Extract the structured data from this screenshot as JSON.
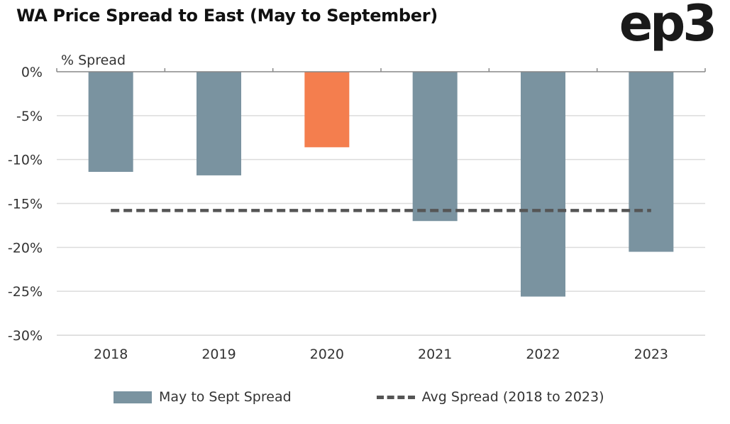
{
  "title": "WA Price Spread to East (May to September)",
  "logo_text": "ep3",
  "colors": {
    "bar": "#7a93a0",
    "highlight": "#f47e4e",
    "avg_line": "#555555",
    "grid": "#dcdcdc",
    "axis": "#888888"
  },
  "chart_data": {
    "type": "bar",
    "ylabel": "% Spread",
    "categories": [
      "2018",
      "2019",
      "2020",
      "2021",
      "2022",
      "2023"
    ],
    "series": [
      {
        "name": "May to Sept Spread",
        "values": [
          -11.4,
          -11.8,
          -8.6,
          -17.0,
          -25.6,
          -20.5
        ],
        "highlight_index": 2
      },
      {
        "name": "Avg Spread (2018 to 2023)",
        "type": "line",
        "style": "dashed",
        "value": -15.8
      }
    ],
    "ylim": [
      -30,
      0
    ],
    "yticks": [
      0,
      -5,
      -10,
      -15,
      -20,
      -25,
      -30
    ],
    "ytick_labels": [
      "0%",
      "-5%",
      "-10%",
      "-15%",
      "-20%",
      "-25%",
      "-30%"
    ],
    "grid": true,
    "legend_position": "bottom"
  }
}
